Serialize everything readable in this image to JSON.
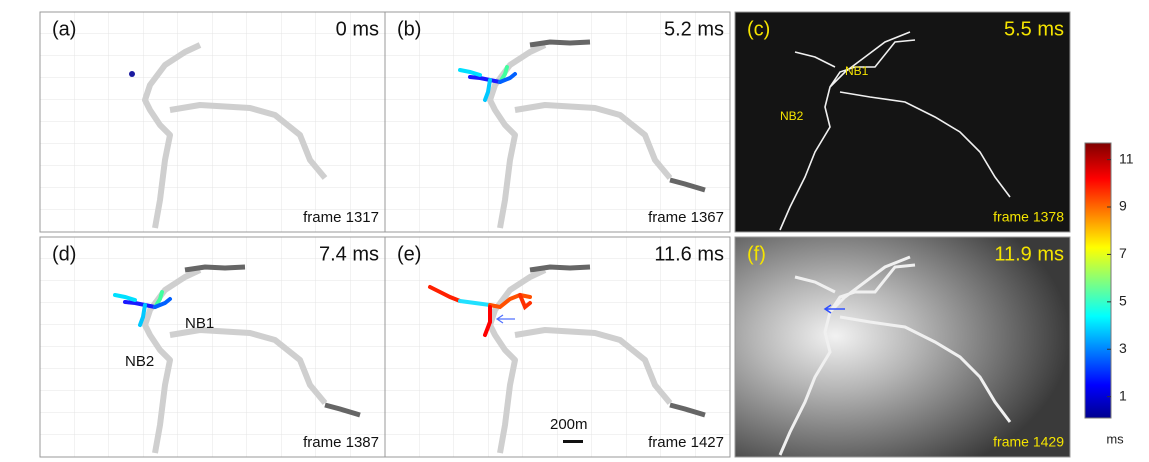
{
  "panels": [
    {
      "label": "(a)",
      "time": "0 ms",
      "frame": "frame 1317"
    },
    {
      "label": "(b)",
      "time": "5.2 ms",
      "frame": "frame 1367"
    },
    {
      "label": "(c)",
      "time": "5.5 ms",
      "frame": "frame 1378",
      "notes": [
        "NB1",
        "NB2"
      ]
    },
    {
      "label": "(d)",
      "time": "7.4 ms",
      "frame": "frame 1387",
      "notes": [
        "NB1",
        "NB2"
      ]
    },
    {
      "label": "(e)",
      "time": "11.6 ms",
      "frame": "frame 1427",
      "notes": [
        "200m"
      ]
    },
    {
      "label": "(f)",
      "time": "11.9 ms",
      "frame": "frame 1429"
    }
  ],
  "colorbar": {
    "lim": [
      0.1,
      11.7
    ],
    "ticks": [
      1,
      3,
      5,
      7,
      9,
      11
    ],
    "unit": "ms"
  }
}
